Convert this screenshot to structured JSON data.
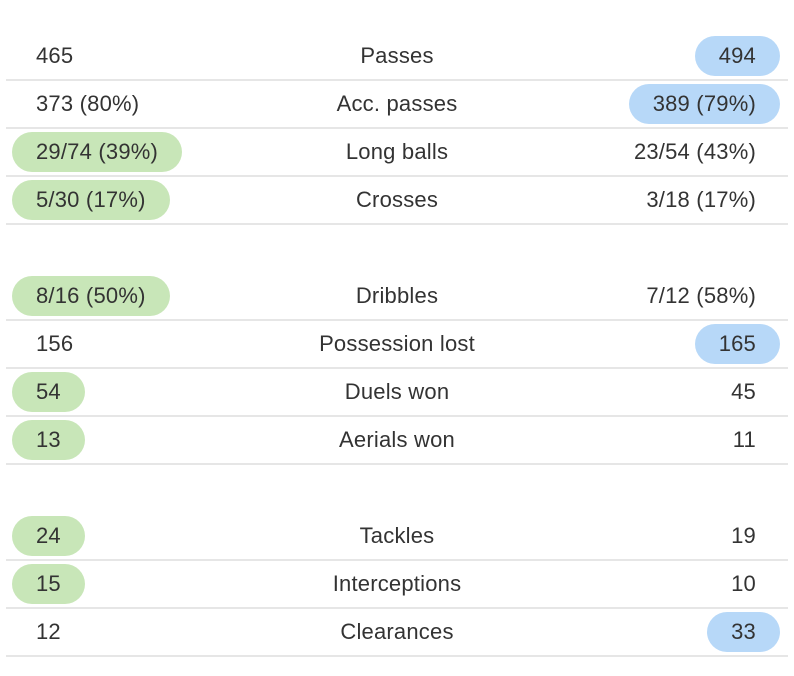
{
  "stats": [
    {
      "label": "Passes",
      "home": "465",
      "away": "494",
      "highlight": "away"
    },
    {
      "label": "Acc. passes",
      "home": "373 (80%)",
      "away": "389 (79%)",
      "highlight": "away"
    },
    {
      "label": "Long balls",
      "home": "29/74 (39%)",
      "away": "23/54 (43%)",
      "highlight": "home"
    },
    {
      "label": "Crosses",
      "home": "5/30 (17%)",
      "away": "3/18 (17%)",
      "highlight": "home"
    },
    {
      "label": "Dribbles",
      "home": "8/16 (50%)",
      "away": "7/12 (58%)",
      "highlight": "home"
    },
    {
      "label": "Possession lost",
      "home": "156",
      "away": "165",
      "highlight": "away"
    },
    {
      "label": "Duels won",
      "home": "54",
      "away": "45",
      "highlight": "home"
    },
    {
      "label": "Aerials won",
      "home": "13",
      "away": "11",
      "highlight": "home"
    },
    {
      "label": "Tackles",
      "home": "24",
      "away": "19",
      "highlight": "home"
    },
    {
      "label": "Interceptions",
      "home": "15",
      "away": "10",
      "highlight": "home"
    },
    {
      "label": "Clearances",
      "home": "12",
      "away": "33",
      "highlight": "away"
    }
  ],
  "colors": {
    "home_highlight": "#c8e6b8",
    "away_highlight": "#b7d8f8",
    "divider": "#e6e6e6",
    "text": "#333333"
  }
}
